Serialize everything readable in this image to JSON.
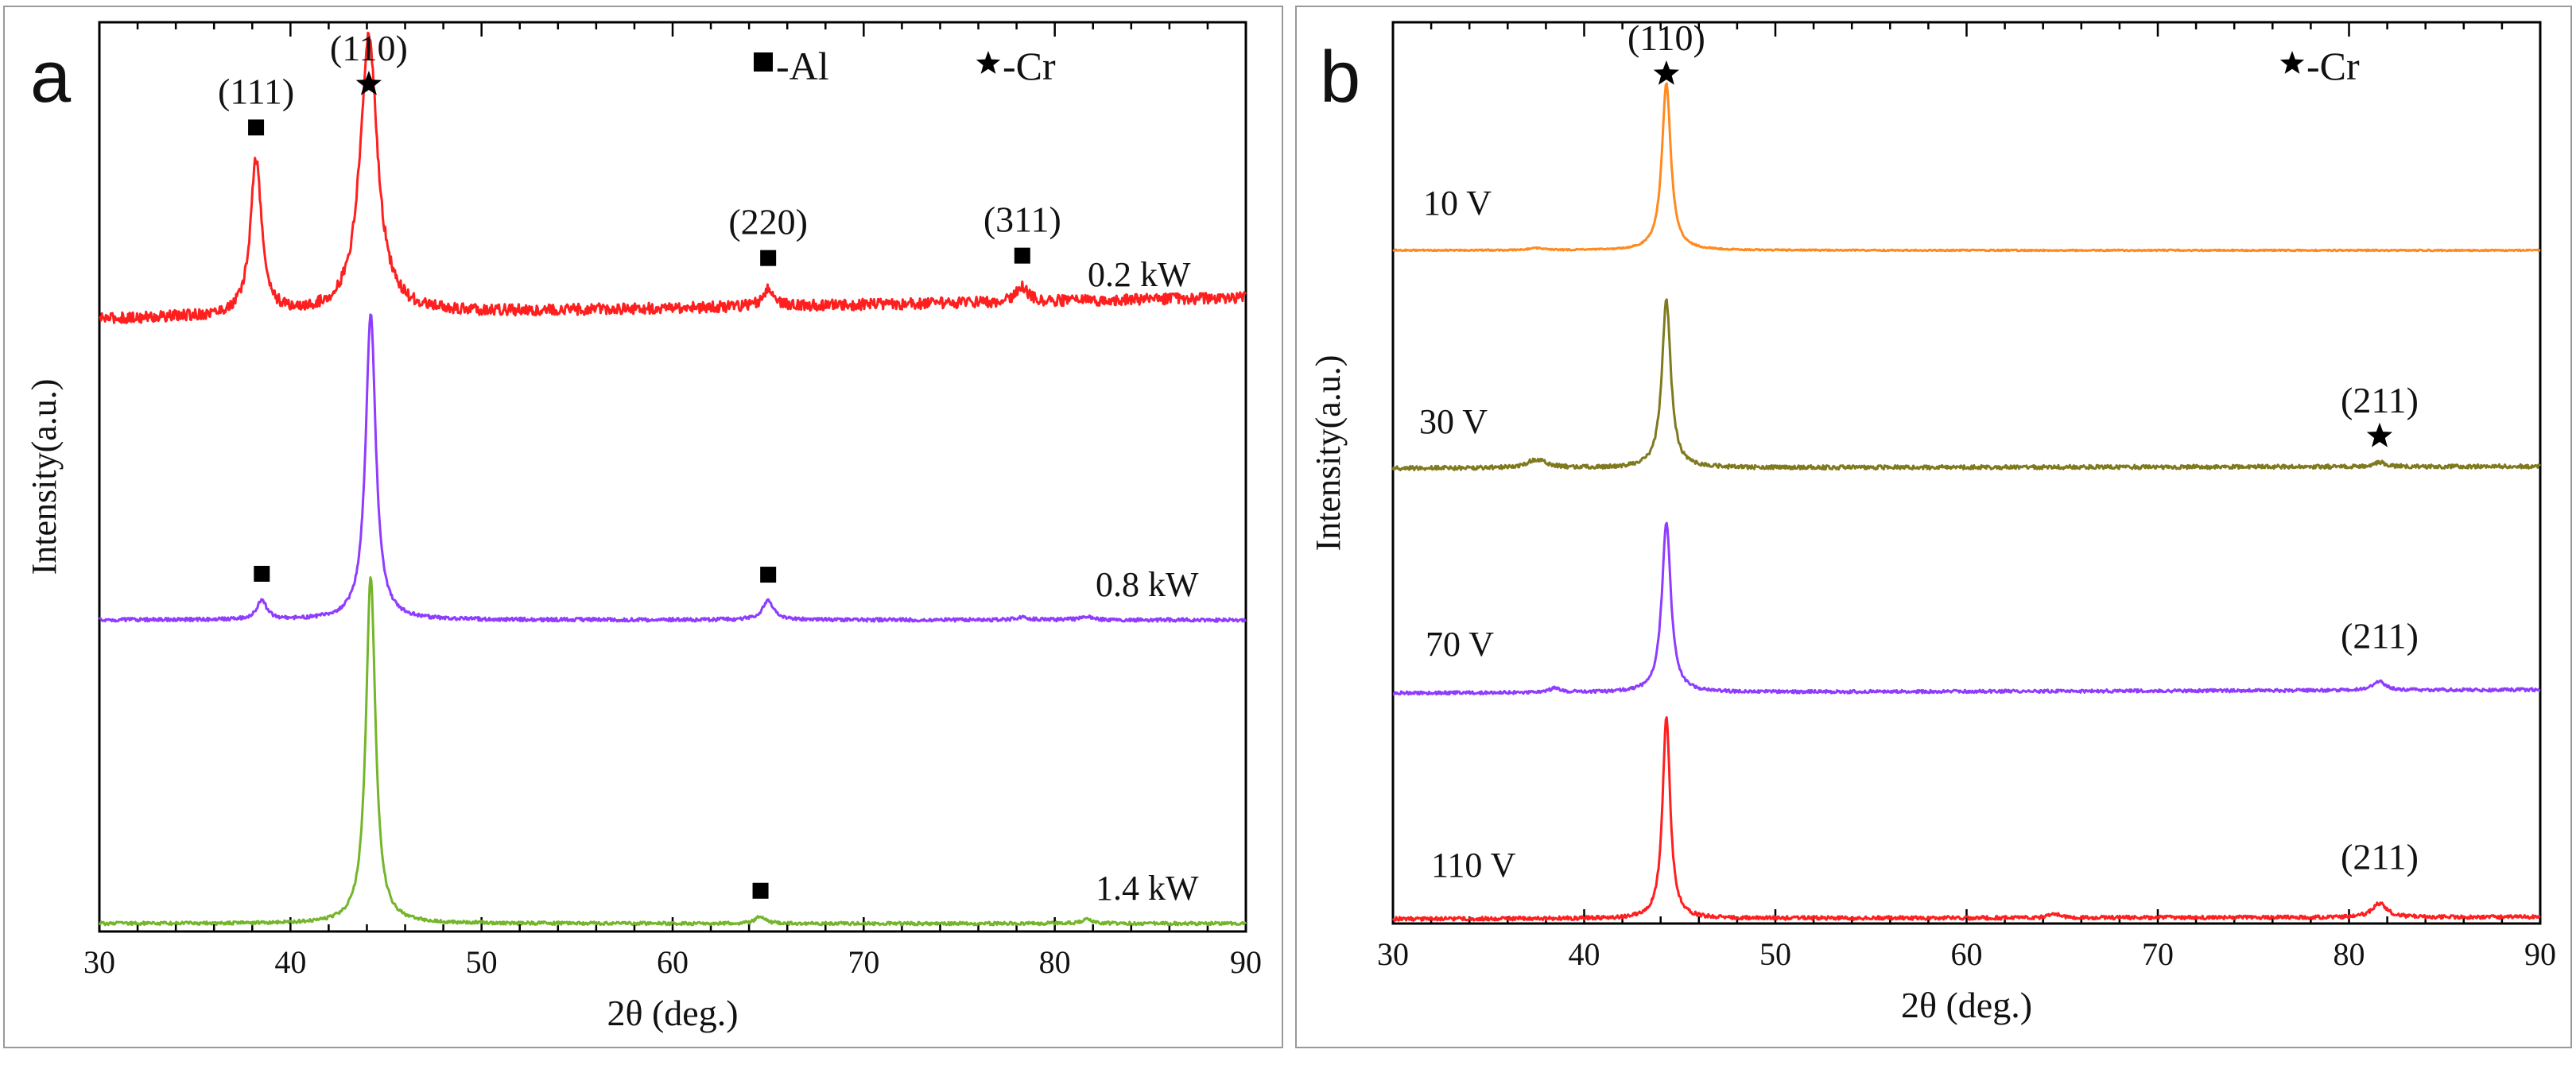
{
  "chart_data": [
    {
      "type": "line",
      "panel_label": "a",
      "xlabel": "2θ (deg.)",
      "ylabel": "Intensity(a.u.)",
      "xlim": [
        30,
        90
      ],
      "x_ticks": [
        30,
        40,
        50,
        60,
        70,
        80,
        90
      ],
      "x_tick_labels": [
        "30",
        "40",
        "50",
        "60",
        "70",
        "80",
        "90"
      ],
      "legend": [
        {
          "symbol": "square",
          "text": "■-Al"
        },
        {
          "symbol": "star",
          "text": "★-Cr"
        }
      ],
      "series": [
        {
          "name": "0.2 kW",
          "label": "0.2 kW",
          "color": "#ff1f1f",
          "peaks": [
            {
              "x": 38.2,
              "height": 0.7,
              "width": 0.35
            },
            {
              "x": 44.1,
              "height": 1.25,
              "width": 0.55
            },
            {
              "x": 65.0,
              "height": 0.08,
              "width": 0.35
            },
            {
              "x": 78.3,
              "height": 0.07,
              "width": 0.35
            }
          ],
          "noise": 0.025
        },
        {
          "name": "0.8 kW",
          "label": "0.8 kW",
          "color": "#8f3cff",
          "peaks": [
            {
              "x": 38.5,
              "height": 0.11,
              "width": 0.3
            },
            {
              "x": 44.2,
              "height": 1.75,
              "width": 0.32
            },
            {
              "x": 65.0,
              "height": 0.11,
              "width": 0.35
            },
            {
              "x": 78.3,
              "height": 0.015,
              "width": 0.35
            },
            {
              "x": 81.6,
              "height": 0.02,
              "width": 0.35
            }
          ],
          "noise": 0.01
        },
        {
          "name": "1.4 kW",
          "label": "1.4 kW",
          "color": "#74b52a",
          "peaks": [
            {
              "x": 44.2,
              "height": 1.75,
              "width": 0.3
            },
            {
              "x": 64.6,
              "height": 0.035,
              "width": 0.3
            },
            {
              "x": 81.7,
              "height": 0.02,
              "width": 0.35
            }
          ],
          "noise": 0.008
        }
      ],
      "annotations": [
        {
          "text": "(111)",
          "series": "0.2 kW",
          "x": 38.2,
          "marker": "square"
        },
        {
          "text": "(110)",
          "series": "0.2 kW",
          "x": 44.1,
          "marker": "star"
        },
        {
          "text": "(220)",
          "series": "0.2 kW",
          "x": 65.0,
          "marker": "square"
        },
        {
          "text": "(311)",
          "series": "0.2 kW",
          "x": 78.3,
          "marker": "square"
        },
        {
          "text": "",
          "series": "0.8 kW",
          "x": 38.5,
          "marker": "square"
        },
        {
          "text": "",
          "series": "0.8 kW",
          "x": 65.0,
          "marker": "square"
        },
        {
          "text": "",
          "series": "1.4 kW",
          "x": 64.6,
          "marker": "square"
        }
      ]
    },
    {
      "type": "line",
      "panel_label": "b",
      "xlabel": "2θ (deg.)",
      "ylabel": "Intensity(a.u.)",
      "xlim": [
        30,
        90
      ],
      "x_ticks": [
        30,
        40,
        50,
        60,
        70,
        80,
        90
      ],
      "x_tick_labels": [
        "30",
        "40",
        "50",
        "60",
        "70",
        "80",
        "90"
      ],
      "legend": [
        {
          "symbol": "star",
          "text": "★-Cr"
        }
      ],
      "series": [
        {
          "name": "10 V",
          "label": "10 V",
          "color": "#ff8a1f",
          "peaks": [
            {
              "x": 44.3,
              "height": 1.0,
              "width": 0.28
            },
            {
              "x": 37.5,
              "height": 0.012,
              "width": 0.5
            }
          ],
          "noise": 0.004
        },
        {
          "name": "30 V",
          "label": "30 V",
          "color": "#7f7a1e",
          "peaks": [
            {
              "x": 44.3,
              "height": 1.0,
              "width": 0.28
            },
            {
              "x": 37.5,
              "height": 0.05,
              "width": 0.6
            },
            {
              "x": 81.6,
              "height": 0.025,
              "width": 0.4
            }
          ],
          "noise": 0.012
        },
        {
          "name": "70 V",
          "label": "70 V",
          "color": "#8f3cff",
          "peaks": [
            {
              "x": 44.3,
              "height": 1.0,
              "width": 0.28
            },
            {
              "x": 38.5,
              "height": 0.025,
              "width": 0.4
            },
            {
              "x": 81.6,
              "height": 0.05,
              "width": 0.4
            }
          ],
          "noise": 0.009
        },
        {
          "name": "110 V",
          "label": "110 V",
          "color": "#ff1f1f",
          "peaks": [
            {
              "x": 44.3,
              "height": 1.0,
              "width": 0.24
            },
            {
              "x": 64.6,
              "height": 0.02,
              "width": 0.35
            },
            {
              "x": 81.6,
              "height": 0.07,
              "width": 0.45
            }
          ],
          "noise": 0.009
        }
      ],
      "annotations": [
        {
          "text": "(110)",
          "series": "10 V",
          "x": 44.3,
          "marker": "star"
        },
        {
          "text": "(211)",
          "series": "30 V",
          "x": 81.6,
          "marker": "star"
        },
        {
          "text": "(211)",
          "series": "70 V",
          "x": 81.6,
          "marker": "none"
        },
        {
          "text": "(211)",
          "series": "110 V",
          "x": 81.6,
          "marker": "none"
        }
      ]
    }
  ]
}
